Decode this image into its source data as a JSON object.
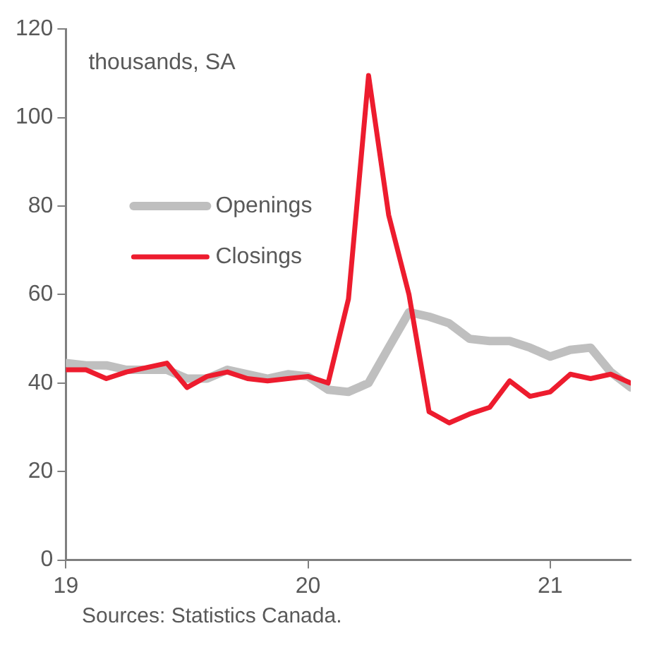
{
  "chart_data": {
    "type": "line",
    "ylabel": "thousands, SA",
    "x": [
      19,
      19.083,
      19.167,
      19.25,
      19.333,
      19.417,
      19.5,
      19.583,
      19.667,
      19.75,
      19.833,
      19.917,
      20,
      20.083,
      20.167,
      20.25,
      20.333,
      20.417,
      20.5,
      20.583,
      20.667,
      20.75,
      20.833,
      20.917,
      21,
      21.083,
      21.167,
      21.25,
      21.333
    ],
    "series": [
      {
        "name": "Openings",
        "color": "#bfbfbf",
        "values": [
          44.5,
          44,
          44,
          43,
          43,
          43,
          41,
          41,
          43,
          42,
          41,
          42,
          41.5,
          38.5,
          38,
          40,
          48,
          56,
          55,
          53.5,
          50,
          49.5,
          49.5,
          48,
          46,
          47.5,
          48,
          42.5,
          39
        ]
      },
      {
        "name": "Closings",
        "color": "#ed1c2e",
        "values": [
          43,
          43,
          41,
          42.5,
          43.5,
          44.5,
          39,
          41.5,
          42.5,
          41,
          40.5,
          41,
          41.5,
          40,
          59,
          109.5,
          78,
          60,
          33.5,
          31,
          33,
          34.5,
          40.5,
          37,
          38,
          42,
          41,
          42,
          40
        ]
      }
    ],
    "xlim": [
      19,
      21.333
    ],
    "xticks": [
      19,
      20,
      21
    ],
    "ylim": [
      0,
      120
    ],
    "yticks": [
      0,
      20,
      40,
      60,
      80,
      100,
      120
    ],
    "grid": false,
    "legend": "left",
    "marker": "none",
    "line_style": "solid",
    "annotations": [
      "Sources: Statistics Canada."
    ]
  }
}
